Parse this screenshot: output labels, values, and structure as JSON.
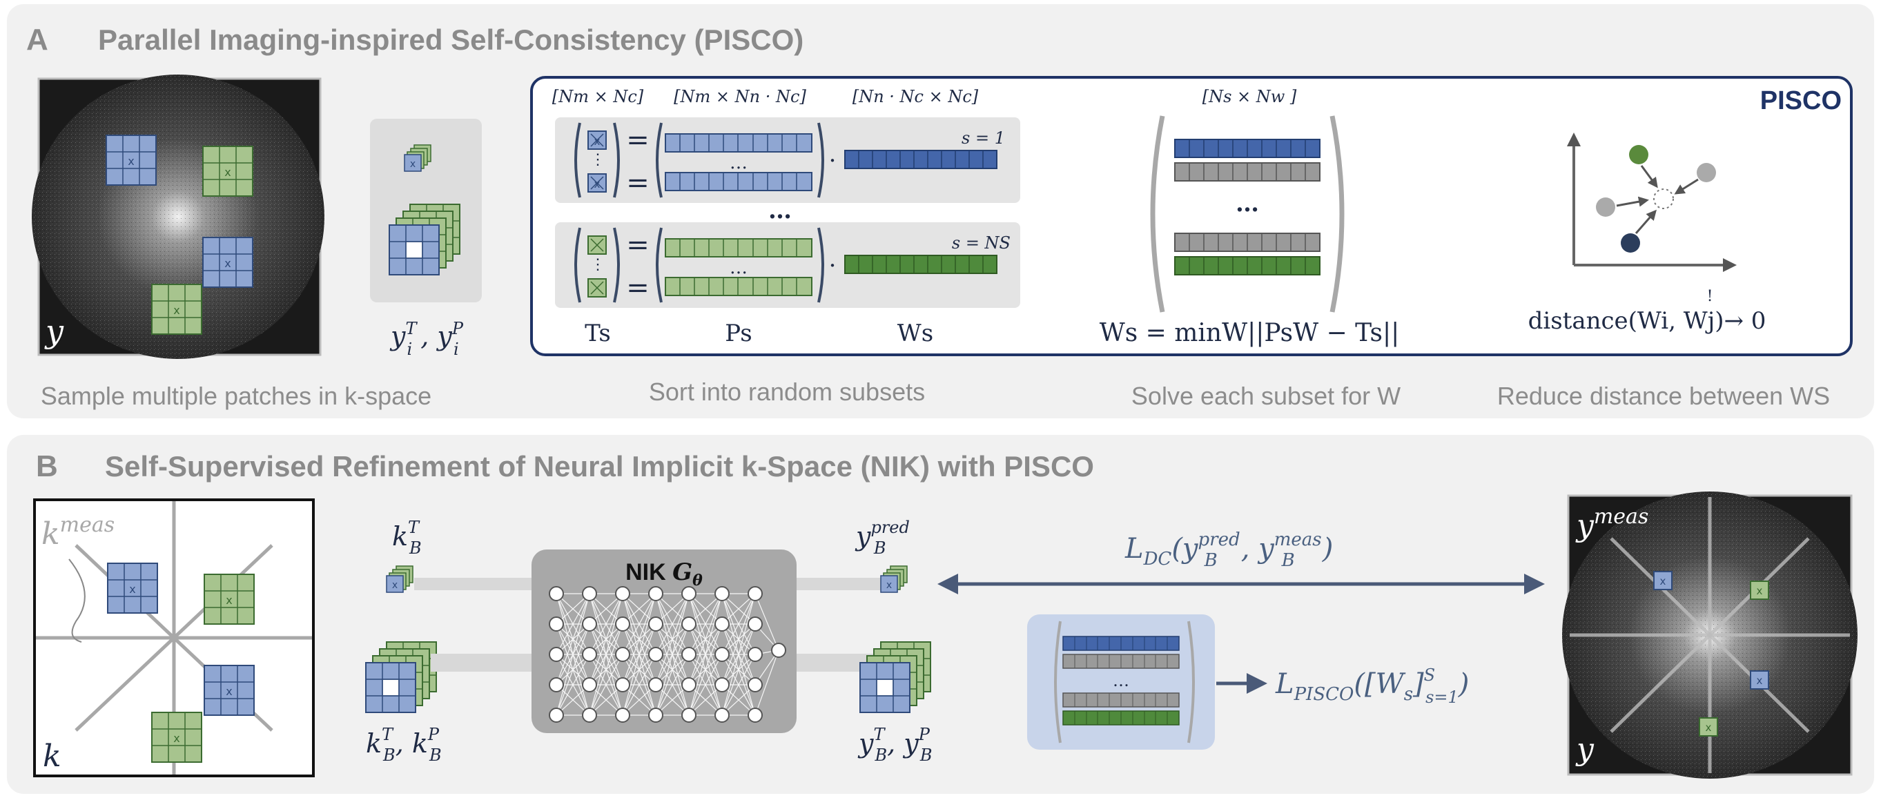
{
  "panel_a": {
    "letter": "A",
    "title": "Parallel Imaging-inspired Self-Consistency (PISCO)",
    "img_label": "y",
    "patch_label_main": "y",
    "patch_label_sup1": "T",
    "patch_label_sub1": "i",
    "patch_label_sep": " , y",
    "patch_label_sup2": "P",
    "patch_label_sub2": "i",
    "pisco_tag": "PISCO",
    "dim_t": "[Nm × Nc]",
    "dim_p": "[Nm × Nn · Nc]",
    "dim_w": "[Nn · Nc × Nc]",
    "dim_ws": "[Ns × Nw ]",
    "s_first": "s = 1",
    "s_last": "s = NS",
    "ellipsis": "…",
    "ts_label": "Ts",
    "ps_label": "Ps",
    "ws_label": "Ws",
    "ws_eq": "Ws = minW||PsW − Ts||",
    "distance_eq": "distance(Wi, Wj)→ 0",
    "bang": "!",
    "caption_1": "Sample multiple patches in k-space",
    "caption_2": "Sort into random subsets",
    "caption_3": "Solve each subset for W",
    "caption_4": "Reduce distance between WS"
  },
  "panel_b": {
    "letter": "B",
    "title": "Self-Supervised Refinement of Neural Implicit k-Space (NIK) with PISCO",
    "kmeas": "kmeas",
    "k": "k",
    "kbt": "kTB",
    "kbtp": "kTB, kPB",
    "nik_title": "NIK Gθ",
    "ypred": "ypredB",
    "ybtp": "yTB, yPB",
    "ldc": "LDC(ypredB, ymeasB)",
    "lpisco": "LPISCO([Ws]Ss=1)",
    "ymeas": "ymeas",
    "y": "y"
  },
  "colors": {
    "blue": "#8fa6d2",
    "green": "#a7c48e",
    "dark_blue_bar": "#4466aa",
    "dark_green_bar": "#4f8a3c",
    "gray_bar": "#9a9a9a",
    "navy": "#1f3366",
    "panel_bg": "#f1f1f1"
  }
}
